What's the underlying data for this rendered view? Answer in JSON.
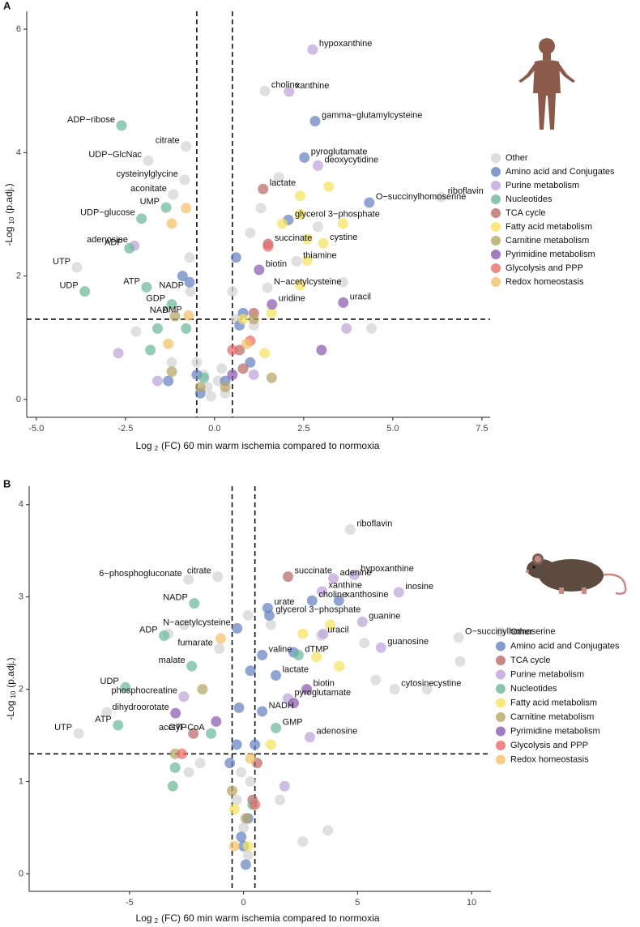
{
  "chart_data": [
    {
      "type": "scatter",
      "panel_label": "A",
      "x_label": [
        "Log",
        "2",
        "(FC) 60 min warm ischemia compared to normoxia"
      ],
      "y_label": [
        "-Log",
        "10",
        "(p.adj.)"
      ],
      "xlim": [
        -5.27,
        7.73
      ],
      "ylim": [
        -0.29,
        6.29
      ],
      "xticks": [
        {
          "value": -5,
          "label": "-5.0"
        },
        -2.5,
        {
          "value": 0,
          "label": "0.0"
        },
        2.5,
        {
          "value": 5,
          "label": "5.0"
        },
        {
          "value": 7.5,
          "label": "7.5"
        }
      ],
      "yticks": [
        0,
        2,
        4,
        6
      ],
      "vlines": [
        -0.5,
        0.5
      ],
      "hline": 1.3,
      "series": [
        {
          "name": "Other",
          "color": "#d4d4d4",
          "x": [
            1.41,
            -0.8,
            -1.86,
            -0.84,
            -1.16,
            6.36,
            2.3,
            -3.86,
            -0.68,
            1.48,
            0.1,
            -0.2,
            0.3,
            -0.3,
            0.2,
            -0.5,
            0.6,
            -1.2,
            -2.2,
            1.8,
            1.3,
            1.0,
            2.9,
            3.6,
            4.4,
            -0.7,
            0.5,
            1.1,
            -0.1
          ],
          "values": [
            5.0,
            4.1,
            3.87,
            3.56,
            3.32,
            3.28,
            2.24,
            2.14,
            1.75,
            1.81,
            0.3,
            0.2,
            0.1,
            0.4,
            0.5,
            0.6,
            1.3,
            0.6,
            1.1,
            3.6,
            3.1,
            2.7,
            2.8,
            1.9,
            1.15,
            2.3,
            1.75,
            1.2,
            0.05
          ],
          "point_labels": [
            "choline",
            "citrate",
            "UDP−GlcNac",
            "cysteinylglycine",
            "aconitate",
            "riboflavin",
            "thiamine",
            "UTP",
            "NADP",
            "N−acetylcysteine",
            null,
            null,
            null,
            null,
            null,
            null,
            null,
            null,
            null,
            null,
            null,
            null,
            null,
            null,
            null,
            null,
            null,
            null,
            null
          ]
        },
        {
          "name": "Amino acid and Conjugates",
          "color": "#6682c2",
          "x": [
            2.82,
            2.52,
            4.34,
            2.07,
            -0.9,
            -0.7,
            0.6,
            0.8,
            -1.3,
            0.3,
            -0.4,
            1.0,
            0.7,
            -0.5
          ],
          "values": [
            4.51,
            3.92,
            3.19,
            2.91,
            2.0,
            1.9,
            2.3,
            1.4,
            0.3,
            0.3,
            0.1,
            0.6,
            1.2,
            0.4
          ],
          "point_labels": [
            "gamma−glutamylcysteine",
            "pyroglutamate",
            "O−succinylhomoserine",
            "glycerol 3−phosphate",
            null,
            null,
            null,
            null,
            null,
            null,
            null,
            null,
            null,
            null
          ]
        },
        {
          "name": "Purine metabolism",
          "color": "#bea3d9",
          "x": [
            2.75,
            2.09,
            2.9,
            -2.25,
            3.7,
            -2.7,
            -1.6,
            1.1
          ],
          "values": [
            5.67,
            4.99,
            3.79,
            2.49,
            1.15,
            0.75,
            0.3,
            0.4
          ],
          "point_labels": [
            "hypoxanthine",
            "xanthine",
            "deoxycytidine",
            "adenosine",
            null,
            null,
            null,
            null
          ]
        },
        {
          "name": "Nucleotides",
          "color": "#6cb898",
          "x": [
            -2.61,
            -1.36,
            -2.05,
            -2.39,
            -3.64,
            -1.91,
            -1.2,
            -1.6,
            -1.8,
            -0.8,
            -0.3
          ],
          "values": [
            4.44,
            3.11,
            2.93,
            2.45,
            1.75,
            1.82,
            1.54,
            1.15,
            0.8,
            1.15,
            0.35
          ],
          "point_labels": [
            "ADP−ribose",
            "UMP",
            "UDP−glucose",
            "ADP",
            "UDP",
            "ATP",
            "GDP",
            null,
            null,
            null,
            null
          ]
        },
        {
          "name": "TCA cycle",
          "color": "#b96a68",
          "x": [
            1.36,
            1.5,
            0.7,
            1.1,
            0.8
          ],
          "values": [
            3.41,
            2.52,
            0.8,
            1.4,
            0.5
          ],
          "point_labels": [
            "lactate",
            "succinate",
            null,
            null,
            null
          ]
        },
        {
          "name": "Fatty acid metabolism",
          "color": "#f6e25e",
          "x": [
            3.05,
            2.4,
            3.2,
            2.4,
            2.6,
            3.6,
            2.4,
            2.6,
            1.6,
            0.8,
            1.9,
            1.4
          ],
          "values": [
            2.53,
            3.3,
            3.45,
            3.0,
            2.6,
            2.85,
            1.85,
            2.25,
            1.4,
            1.3,
            2.85,
            0.75
          ],
          "point_labels": [
            "cystine",
            null,
            null,
            null,
            null,
            null,
            null,
            null,
            null,
            null,
            null,
            null
          ]
        },
        {
          "name": "Carnitine metabolism",
          "color": "#b6a565",
          "x": [
            -1.11,
            -1.2,
            0.3,
            1.6,
            1.1,
            -0.4
          ],
          "values": [
            1.35,
            0.45,
            0.2,
            0.35,
            1.3,
            0.2
          ],
          "point_labels": [
            "NAD",
            null,
            null,
            null,
            null,
            null
          ]
        },
        {
          "name": "Pyrimidine metabolism",
          "color": "#8a5bb0",
          "x": [
            1.25,
            1.61,
            3.61,
            3.0,
            0.5
          ],
          "values": [
            2.1,
            1.54,
            1.57,
            0.8,
            0.4
          ],
          "point_labels": [
            "biotin",
            "uridine",
            "uracil",
            null,
            null
          ]
        },
        {
          "name": "Glycolysis and PPP",
          "color": "#ec6a6a",
          "x": [
            1.5,
            1.0,
            0.5
          ],
          "values": [
            2.48,
            0.95,
            0.8
          ],
          "point_labels": [
            null,
            null,
            null
          ]
        },
        {
          "name": "Redox homeostasis",
          "color": "#f4c068",
          "x": [
            -0.73,
            -0.8,
            -1.2,
            -1.3,
            0.9
          ],
          "values": [
            1.36,
            3.1,
            2.85,
            0.9,
            0.9
          ],
          "point_labels": [
            "AMP",
            null,
            null,
            null,
            null
          ]
        }
      ]
    },
    {
      "type": "scatter",
      "panel_label": "B",
      "x_label": [
        "Log",
        "2",
        "(FC) 60 min warm ischemia compared to normoxia"
      ],
      "y_label": [
        "-Log",
        "10",
        "(p.adj.)"
      ],
      "xlim": [
        -9.4,
        10.85
      ],
      "ylim": [
        -0.19,
        4.2
      ],
      "xticks": [
        -5,
        0,
        5,
        10
      ],
      "yticks": [
        0,
        1,
        2,
        3,
        4
      ],
      "vlines": [
        -0.5,
        0.5
      ],
      "hline": 1.3,
      "series": [
        {
          "name": "Other",
          "color": "#d4d4d4",
          "x": [
            4.68,
            -1.13,
            -2.41,
            9.43,
            3.4,
            -1.06,
            6.63,
            8.05,
            -7.23,
            -6.0,
            -2.6,
            -3.3,
            0.2,
            1.2,
            5.8,
            9.5,
            5.3,
            2.6,
            3.7,
            0.0,
            -0.3,
            0.3,
            -1.9,
            1.6,
            0.2,
            -0.1,
            -2.4
          ],
          "values": [
            3.73,
            3.22,
            3.19,
            2.56,
            2.58,
            2.44,
            2.0,
            2.0,
            1.52,
            1.75,
            2.7,
            2.6,
            2.8,
            2.7,
            2.1,
            2.3,
            2.5,
            0.35,
            0.47,
            0.5,
            0.8,
            1.0,
            1.2,
            0.8,
            0.2,
            1.1,
            1.1
          ],
          "point_labels": [
            "riboflavin",
            "citrate",
            "6−phosphogluconate",
            "O−succinylhomoserine",
            "uracil",
            "fumarate",
            "cytosine",
            "cystine",
            "UTP",
            null,
            null,
            null,
            null,
            null,
            null,
            null,
            null,
            null,
            null,
            null,
            null,
            null,
            null,
            null,
            null,
            null,
            null
          ]
        },
        {
          "name": "Amino acid and Conjugates",
          "color": "#6682c2",
          "x": [
            3.01,
            1.06,
            4.18,
            1.13,
            -0.28,
            0.82,
            1.42,
            0.82,
            0.1,
            -0.1,
            0.2,
            -0.3,
            0.5,
            -0.2,
            0.3,
            2.2,
            -0.6,
            0.0
          ],
          "values": [
            2.96,
            2.88,
            2.96,
            2.8,
            2.66,
            2.37,
            2.15,
            1.76,
            0.1,
            0.4,
            0.6,
            1.4,
            1.4,
            1.8,
            2.2,
            2.4,
            1.2,
            0.3
          ],
          "point_labels": [
            "choline",
            "urate",
            "xanthosine",
            "glycerol 3−phosphate",
            "N−acetylcysteine",
            "valine",
            "lactate",
            "NADH",
            null,
            null,
            null,
            null,
            null,
            null,
            null,
            null,
            null,
            null
          ]
        },
        {
          "name": "TCA cycle",
          "color": "#b96a68",
          "x": [
            1.95,
            -2.2,
            0.6,
            0.4
          ],
          "values": [
            3.22,
            1.52,
            1.2,
            0.8
          ],
          "point_labels": [
            "succinate",
            "GTP",
            null,
            null
          ]
        },
        {
          "name": "Purine metabolism",
          "color": "#bea3d9",
          "x": [
            4.86,
            3.94,
            6.81,
            3.44,
            5.21,
            6.03,
            -2.62,
            1.95,
            2.91,
            1.8,
            3.5
          ],
          "values": [
            3.24,
            3.2,
            3.05,
            3.06,
            2.73,
            2.45,
            1.92,
            1.9,
            1.48,
            0.95,
            2.6
          ],
          "point_labels": [
            "hypoxanthine",
            "adenine",
            "inosine",
            "xanthine",
            "guanine",
            "guanosine",
            "phosphocreatine",
            "pyroglutamate",
            "adenosine",
            null,
            null
          ]
        },
        {
          "name": "Nucleotides",
          "color": "#6cb898",
          "x": [
            -2.16,
            -3.48,
            2.41,
            -2.27,
            -5.18,
            -5.5,
            1.42,
            -1.42,
            -3.1,
            -3.0,
            0.4
          ],
          "values": [
            2.93,
            2.58,
            2.37,
            2.25,
            2.02,
            1.61,
            1.58,
            1.52,
            0.95,
            1.15,
            0.75
          ],
          "point_labels": [
            "NADP",
            "ADP",
            "dTMP",
            "malate",
            "UDP",
            "ATP",
            "GMP",
            "acetyl−CoA",
            null,
            null,
            null
          ]
        },
        {
          "name": "Fatty acid metabolism",
          "color": "#f6e25e",
          "x": [
            3.2,
            4.2,
            3.8,
            2.6,
            1.2,
            -0.4,
            0.2
          ],
          "values": [
            2.35,
            2.25,
            2.7,
            2.6,
            1.4,
            0.7,
            0.3
          ],
          "point_labels": [
            null,
            null,
            null,
            null,
            null,
            null,
            null
          ]
        },
        {
          "name": "Carnitine metabolism",
          "color": "#b6a565",
          "x": [
            -3.0,
            -0.5,
            0.1,
            -1.8
          ],
          "values": [
            1.3,
            0.9,
            0.6,
            2.0
          ],
          "point_labels": [
            null,
            null,
            null,
            null
          ]
        },
        {
          "name": "Pyrimidine metabolism",
          "color": "#8a5bb0",
          "x": [
            2.77,
            -2.98,
            -1.2,
            2.2
          ],
          "values": [
            2.0,
            1.74,
            1.65,
            1.85
          ],
          "point_labels": [
            "biotin",
            "dihydroorotate",
            null,
            null
          ]
        },
        {
          "name": "Glycolysis and PPP",
          "color": "#ec6a6a",
          "x": [
            0.5,
            -2.7
          ],
          "values": [
            0.75,
            1.3
          ],
          "point_labels": [
            null,
            null
          ]
        },
        {
          "name": "Redox homeostasis",
          "color": "#f4c068",
          "x": [
            -1.0,
            0.3,
            -0.4
          ],
          "values": [
            2.55,
            1.25,
            0.3
          ],
          "point_labels": [
            null,
            null,
            null
          ]
        }
      ]
    }
  ]
}
